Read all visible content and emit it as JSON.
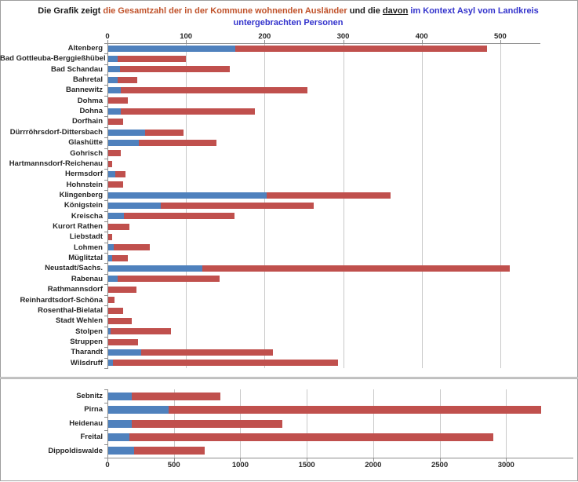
{
  "title": {
    "lines": [
      [
        {
          "text": "Die Grafik zeigt ",
          "color": "#1a1a1a",
          "underline": false
        },
        {
          "text": "die Gesamtzahl der in der Kommune wohnenden Ausländer",
          "color": "#c0522a",
          "underline": false
        },
        {
          "text": " und die ",
          "color": "#1a1a1a",
          "underline": false
        },
        {
          "text": "davon",
          "color": "#1a1a1a",
          "underline": true
        },
        {
          "text": " im Kontext Asyl vom Landkreis",
          "color": "#3333cc",
          "underline": false
        }
      ],
      [
        {
          "text": "untergebrachten Personen",
          "color": "#3333cc",
          "underline": false
        }
      ]
    ]
  },
  "colors": {
    "asyl_blue": "#4f81bd",
    "gesamt_red": "#c0504d",
    "gridline": "#c9c9c9",
    "axis_line": "#8c8c8c",
    "panel_border": "#9e9e9e"
  },
  "chart_data": [
    {
      "type": "bar",
      "orientation": "horizontal",
      "stacked": true,
      "note": "blue segment = Asyl persons, red segment extends from asyl value to gesamt (total foreigners) value",
      "axis": {
        "position": "top",
        "min": 0,
        "max": 550,
        "ticks": [
          0,
          100,
          200,
          300,
          400,
          500
        ],
        "tick_labels": [
          "0",
          "100",
          "200",
          "300",
          "400",
          "500"
        ]
      },
      "categories": [
        "Altenberg",
        "Bad Gottleuba-Berggießhübel",
        "Bad Schandau",
        "Bahretal",
        "Bannewitz",
        "Dohma",
        "Dohna",
        "Dorfhain",
        "Dürrröhrsdorf-Dittersbach",
        "Glashütte",
        "Gohrisch",
        "Hartmannsdorf-Reichenau",
        "Hermsdorf",
        "Hohnstein",
        "Klingenberg",
        "Königstein",
        "Kreischa",
        "Kurort Rathen",
        "Liebstadt",
        "Lohmen",
        "Müglitztal",
        "Neustadt/Sachs.",
        "Rabenau",
        "Rathmannsdorf",
        "Reinhardtsdorf-Schöna",
        "Rosenthal-Bielatal",
        "Stadt Wehlen",
        "Stolpen",
        "Struppen",
        "Tharandt",
        "Wilsdruff"
      ],
      "series": [
        {
          "name": "davon im Kontext Asyl vom Landkreis untergebrachte Personen",
          "color": "#4f81bd",
          "values": [
            162,
            12,
            15,
            12,
            16,
            0,
            16,
            0,
            47,
            39,
            0,
            0,
            9,
            0,
            202,
            67,
            20,
            0,
            0,
            7,
            5,
            120,
            12,
            0,
            0,
            0,
            0,
            3,
            0,
            42,
            6
          ]
        },
        {
          "name": "Gesamtzahl der in der Kommune wohnenden Ausländer",
          "color": "#c0504d",
          "values": [
            482,
            99,
            155,
            37,
            254,
            25,
            187,
            19,
            96,
            138,
            16,
            5,
            22,
            19,
            359,
            262,
            161,
            27,
            5,
            53,
            25,
            511,
            142,
            36,
            8,
            19,
            30,
            80,
            38,
            210,
            292
          ]
        }
      ]
    },
    {
      "type": "bar",
      "orientation": "horizontal",
      "stacked": true,
      "note": "blue segment = Asyl persons, red segment extends from asyl value to gesamt (total foreigners) value",
      "axis": {
        "position": "bottom",
        "min": 0,
        "max": 3500,
        "ticks": [
          0,
          500,
          1000,
          1500,
          2000,
          2500,
          3000
        ],
        "tick_labels": [
          "0",
          "500",
          "1000",
          "1500",
          "2000",
          "2500",
          "3000"
        ]
      },
      "categories": [
        "Sebnitz",
        "Pirna",
        "Heidenau",
        "Freital",
        "Dippoldiswalde"
      ],
      "series": [
        {
          "name": "davon im Kontext Asyl vom Landkreis untergebrachte Personen",
          "color": "#4f81bd",
          "values": [
            178,
            455,
            178,
            160,
            195
          ]
        },
        {
          "name": "Gesamtzahl der in der Kommune wohnenden Ausländer",
          "color": "#c0504d",
          "values": [
            845,
            3260,
            1310,
            2900,
            725
          ]
        }
      ]
    }
  ]
}
